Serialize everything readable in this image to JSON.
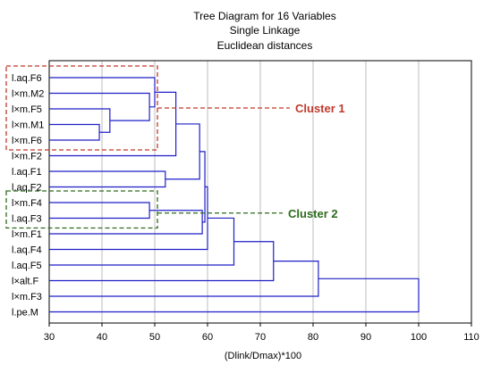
{
  "chart_data": {
    "type": "dendrogram",
    "title": "Tree Diagram for 16 Variables",
    "subtitle_1": "Single Linkage",
    "subtitle_2": "Euclidean distances",
    "xlabel": "(Dlink/Dmax)*100",
    "xlim": [
      30,
      110
    ],
    "xticks": [
      30,
      40,
      50,
      60,
      70,
      80,
      90,
      100,
      110
    ],
    "grid": "vertical",
    "leaves": [
      "l.aq.F6",
      "l×m.M2",
      "l×m.F5",
      "l×m.M1",
      "l×m.F6",
      "l×m.F2",
      "l.aq.F1",
      "l.aq.F2",
      "l×m.F4",
      "l.aq.F3",
      "l×m.F1",
      "l.aq.F4",
      "l.aq.F5",
      "l×alt.F",
      "l×m.F3",
      "l.pe.M"
    ],
    "merges": [
      {
        "a": "l×m.M1",
        "b": "l×m.F6",
        "height": 39.5
      },
      {
        "a": "l×m.F5",
        "b": "m1",
        "height": 41.5
      },
      {
        "a": "l×m.M2",
        "b": "m2",
        "height": 49
      },
      {
        "a": "l.aq.F6",
        "b": "m3",
        "height": 50
      },
      {
        "a": "l.aq.F1",
        "b": "l.aq.F2",
        "height": 52
      },
      {
        "a": "m4",
        "b": "l×m.F2",
        "height": 54
      },
      {
        "a": "m6",
        "b": "m5",
        "height": 58.5
      },
      {
        "a": "l×m.F4",
        "b": "l.aq.F3",
        "height": 49
      },
      {
        "a": "m8",
        "b": "l×m.F1",
        "height": 59
      },
      {
        "a": "m7",
        "b": "m9",
        "height": 59.5
      },
      {
        "a": "m10",
        "b": "l.aq.F4",
        "height": 60
      },
      {
        "a": "m11",
        "b": "l.aq.F5",
        "height": 65
      },
      {
        "a": "m12",
        "b": "l×alt.F",
        "height": 72.5
      },
      {
        "a": "m13",
        "b": "l×m.F3",
        "height": 81
      },
      {
        "a": "m14",
        "b": "l.pe.M",
        "height": 100
      }
    ],
    "annotations": [
      {
        "label": "Cluster 1",
        "color": "#c0392b",
        "members": [
          "l.aq.F6",
          "l×m.M2",
          "l×m.F5",
          "l×m.M1",
          "l×m.F6"
        ],
        "box_x_end": 50
      },
      {
        "label": "Cluster 2",
        "color": "#2e6b1f",
        "members": [
          "l×m.F4",
          "l.aq.F3"
        ],
        "box_x_end": 50
      }
    ],
    "line_color": "#1f1fc8"
  }
}
